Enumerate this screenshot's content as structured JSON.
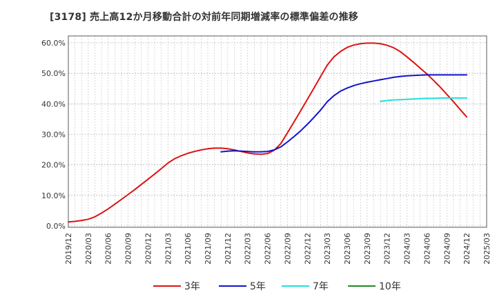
{
  "chart_data": {
    "type": "line",
    "title": "[3178]  売上高12か月移動合計の対前年同期増減率の標準偏差の推移",
    "xlabel": "",
    "ylabel": "",
    "ylim": [
      0,
      0.6
    ],
    "y_ticks": [
      0,
      0.1,
      0.2,
      0.3,
      0.4,
      0.5,
      0.6
    ],
    "y_tick_labels": [
      "0.0%",
      "10.0%",
      "20.0%",
      "30.0%",
      "40.0%",
      "50.0%",
      "60.0%"
    ],
    "x_tick_labels": [
      "2019/12",
      "2020/03",
      "2020/06",
      "2020/09",
      "2020/12",
      "2021/03",
      "2021/06",
      "2021/09",
      "2021/12",
      "2022/03",
      "2022/06",
      "2022/09",
      "2022/12",
      "2023/03",
      "2023/06",
      "2023/09",
      "2023/12",
      "2024/03",
      "2024/06",
      "2024/09",
      "2024/12",
      "2025/03"
    ],
    "grid": true,
    "legend_position": "bottom",
    "series": [
      {
        "name": "3年",
        "color": "#dd1111",
        "points": [
          [
            "2019/12",
            0.013
          ],
          [
            "2020/01",
            0.015
          ],
          [
            "2020/02",
            0.018
          ],
          [
            "2020/03",
            0.022
          ],
          [
            "2020/04",
            0.03
          ],
          [
            "2020/05",
            0.042
          ],
          [
            "2020/06",
            0.056
          ],
          [
            "2020/07",
            0.071
          ],
          [
            "2020/08",
            0.087
          ],
          [
            "2020/09",
            0.103
          ],
          [
            "2020/10",
            0.119
          ],
          [
            "2020/11",
            0.136
          ],
          [
            "2020/12",
            0.153
          ],
          [
            "2021/01",
            0.17
          ],
          [
            "2021/02",
            0.188
          ],
          [
            "2021/03",
            0.206
          ],
          [
            "2021/04",
            0.22
          ],
          [
            "2021/05",
            0.23
          ],
          [
            "2021/06",
            0.238
          ],
          [
            "2021/07",
            0.244
          ],
          [
            "2021/08",
            0.249
          ],
          [
            "2021/09",
            0.253
          ],
          [
            "2021/10",
            0.255
          ],
          [
            "2021/11",
            0.255
          ],
          [
            "2021/12",
            0.253
          ],
          [
            "2022/01",
            0.249
          ],
          [
            "2022/02",
            0.244
          ],
          [
            "2022/03",
            0.239
          ],
          [
            "2022/04",
            0.236
          ],
          [
            "2022/05",
            0.235
          ],
          [
            "2022/06",
            0.237
          ],
          [
            "2022/07",
            0.248
          ],
          [
            "2022/08",
            0.27
          ],
          [
            "2022/09",
            0.305
          ],
          [
            "2022/10",
            0.341
          ],
          [
            "2022/11",
            0.378
          ],
          [
            "2022/12",
            0.415
          ],
          [
            "2023/01",
            0.452
          ],
          [
            "2023/02",
            0.49
          ],
          [
            "2023/03",
            0.527
          ],
          [
            "2023/04",
            0.554
          ],
          [
            "2023/05",
            0.572
          ],
          [
            "2023/06",
            0.585
          ],
          [
            "2023/07",
            0.593
          ],
          [
            "2023/08",
            0.597
          ],
          [
            "2023/09",
            0.599
          ],
          [
            "2023/10",
            0.599
          ],
          [
            "2023/11",
            0.597
          ],
          [
            "2023/12",
            0.592
          ],
          [
            "2024/01",
            0.584
          ],
          [
            "2024/02",
            0.571
          ],
          [
            "2024/03",
            0.554
          ],
          [
            "2024/04",
            0.536
          ],
          [
            "2024/05",
            0.517
          ],
          [
            "2024/06",
            0.498
          ],
          [
            "2024/07",
            0.477
          ],
          [
            "2024/08",
            0.455
          ],
          [
            "2024/09",
            0.431
          ],
          [
            "2024/10",
            0.407
          ],
          [
            "2024/11",
            0.382
          ],
          [
            "2024/12",
            0.357
          ]
        ]
      },
      {
        "name": "5年",
        "color": "#1111cc",
        "points": [
          [
            "2021/11",
            0.243
          ],
          [
            "2021/12",
            0.245
          ],
          [
            "2022/01",
            0.246
          ],
          [
            "2022/02",
            0.245
          ],
          [
            "2022/03",
            0.244
          ],
          [
            "2022/04",
            0.243
          ],
          [
            "2022/05",
            0.243
          ],
          [
            "2022/06",
            0.244
          ],
          [
            "2022/07",
            0.249
          ],
          [
            "2022/08",
            0.259
          ],
          [
            "2022/09",
            0.275
          ],
          [
            "2022/10",
            0.293
          ],
          [
            "2022/11",
            0.312
          ],
          [
            "2022/12",
            0.333
          ],
          [
            "2023/01",
            0.356
          ],
          [
            "2023/02",
            0.38
          ],
          [
            "2023/03",
            0.407
          ],
          [
            "2023/04",
            0.427
          ],
          [
            "2023/05",
            0.442
          ],
          [
            "2023/06",
            0.452
          ],
          [
            "2023/07",
            0.46
          ],
          [
            "2023/08",
            0.466
          ],
          [
            "2023/09",
            0.471
          ],
          [
            "2023/10",
            0.475
          ],
          [
            "2023/11",
            0.479
          ],
          [
            "2023/12",
            0.483
          ],
          [
            "2024/01",
            0.487
          ],
          [
            "2024/02",
            0.49
          ],
          [
            "2024/03",
            0.492
          ],
          [
            "2024/04",
            0.493
          ],
          [
            "2024/05",
            0.494
          ],
          [
            "2024/06",
            0.495
          ],
          [
            "2024/07",
            0.495
          ],
          [
            "2024/08",
            0.495
          ],
          [
            "2024/09",
            0.495
          ],
          [
            "2024/10",
            0.495
          ],
          [
            "2024/11",
            0.495
          ],
          [
            "2024/12",
            0.495
          ]
        ]
      },
      {
        "name": "7年",
        "color": "#22dddd",
        "points": [
          [
            "2023/11",
            0.408
          ],
          [
            "2023/12",
            0.411
          ],
          [
            "2024/01",
            0.413
          ],
          [
            "2024/02",
            0.414
          ],
          [
            "2024/03",
            0.415
          ],
          [
            "2024/04",
            0.416
          ],
          [
            "2024/05",
            0.417
          ],
          [
            "2024/06",
            0.418
          ],
          [
            "2024/07",
            0.418
          ],
          [
            "2024/08",
            0.419
          ],
          [
            "2024/09",
            0.419
          ],
          [
            "2024/10",
            0.419
          ],
          [
            "2024/11",
            0.419
          ],
          [
            "2024/12",
            0.419
          ]
        ]
      },
      {
        "name": "10年",
        "color": "#228822",
        "points": []
      }
    ]
  }
}
